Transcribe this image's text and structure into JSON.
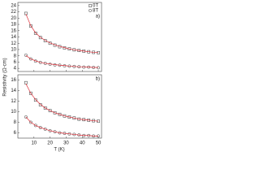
{
  "chart_data": [
    {
      "type": "scatter",
      "panel_label": "a)",
      "ylabel": "Resistivity (Ω-cm)",
      "xlim": [
        0,
        52
      ],
      "ylim": [
        3,
        25
      ],
      "yticks": [
        4,
        6,
        8,
        10,
        12,
        14,
        16,
        18,
        20,
        22,
        24
      ],
      "legend": "upper right",
      "series": [
        {
          "name": "0T",
          "marker": "square",
          "color": "#333333",
          "x": [
            5,
            8,
            11,
            14,
            17,
            20,
            23,
            26,
            29,
            32,
            35,
            38,
            41,
            44,
            47,
            50
          ],
          "values": [
            21.5,
            17.5,
            15.2,
            13.8,
            12.8,
            12.0,
            11.4,
            10.9,
            10.5,
            10.2,
            9.9,
            9.7,
            9.5,
            9.3,
            9.1,
            9.0
          ]
        },
        {
          "name": "8T",
          "marker": "circle",
          "color": "#333333",
          "x": [
            5,
            8,
            11,
            14,
            17,
            20,
            23,
            26,
            29,
            32,
            35,
            38,
            41,
            44,
            47,
            50
          ],
          "values": [
            8.2,
            7.0,
            6.3,
            5.9,
            5.6,
            5.3,
            5.1,
            5.0,
            4.8,
            4.7,
            4.6,
            4.5,
            4.4,
            4.4,
            4.3,
            4.2
          ]
        },
        {
          "marker": "line",
          "color": "#e0303a",
          "x": [
            5,
            8,
            11,
            14,
            17,
            20,
            23,
            26,
            29,
            32,
            35,
            38,
            41,
            44,
            47,
            50
          ],
          "values": [
            21.3,
            17.6,
            15.3,
            13.9,
            12.9,
            12.1,
            11.5,
            11.0,
            10.6,
            10.2,
            9.9,
            9.7,
            9.5,
            9.3,
            9.1,
            9.0
          ]
        },
        {
          "marker": "line",
          "color": "#e0303a",
          "x": [
            5,
            8,
            11,
            14,
            17,
            20,
            23,
            26,
            29,
            32,
            35,
            38,
            41,
            44,
            47,
            50
          ],
          "values": [
            8.1,
            7.0,
            6.4,
            5.9,
            5.6,
            5.4,
            5.2,
            5.0,
            4.9,
            4.7,
            4.6,
            4.5,
            4.5,
            4.4,
            4.3,
            4.3
          ]
        }
      ]
    },
    {
      "type": "scatter",
      "panel_label": "b)",
      "xlabel": "T (K)",
      "xlim": [
        0,
        52
      ],
      "xticks": [
        10,
        20,
        30,
        40,
        50
      ],
      "ylim": [
        5,
        17
      ],
      "yticks": [
        6,
        8,
        10,
        12,
        14,
        16
      ],
      "series": [
        {
          "marker": "square",
          "color": "#333333",
          "x": [
            5,
            8,
            11,
            14,
            17,
            20,
            23,
            26,
            29,
            32,
            35,
            38,
            41,
            44,
            47,
            50
          ],
          "values": [
            15.5,
            13.5,
            12.2,
            11.3,
            10.7,
            10.2,
            9.8,
            9.5,
            9.2,
            9.0,
            8.8,
            8.6,
            8.5,
            8.4,
            8.3,
            8.2
          ]
        },
        {
          "marker": "circle",
          "color": "#333333",
          "x": [
            5,
            8,
            11,
            14,
            17,
            20,
            23,
            26,
            29,
            32,
            35,
            38,
            41,
            44,
            47,
            50
          ],
          "values": [
            9.0,
            8.0,
            7.4,
            7.0,
            6.7,
            6.4,
            6.2,
            6.0,
            5.9,
            5.8,
            5.7,
            5.6,
            5.5,
            5.5,
            5.4,
            5.4
          ]
        },
        {
          "marker": "line",
          "color": "#e0303a",
          "x": [
            5,
            8,
            11,
            14,
            17,
            20,
            23,
            26,
            29,
            32,
            35,
            38,
            41,
            44,
            47,
            50
          ],
          "values": [
            15.3,
            13.5,
            12.3,
            11.4,
            10.7,
            10.2,
            9.8,
            9.5,
            9.2,
            9.0,
            8.8,
            8.6,
            8.5,
            8.4,
            8.3,
            8.2
          ]
        },
        {
          "marker": "line",
          "color": "#e0303a",
          "x": [
            5,
            8,
            11,
            14,
            17,
            20,
            23,
            26,
            29,
            32,
            35,
            38,
            41,
            44,
            47,
            50
          ],
          "values": [
            9.0,
            8.0,
            7.4,
            7.0,
            6.7,
            6.4,
            6.2,
            6.0,
            5.9,
            5.8,
            5.7,
            5.6,
            5.5,
            5.5,
            5.4,
            5.4
          ]
        }
      ]
    }
  ]
}
